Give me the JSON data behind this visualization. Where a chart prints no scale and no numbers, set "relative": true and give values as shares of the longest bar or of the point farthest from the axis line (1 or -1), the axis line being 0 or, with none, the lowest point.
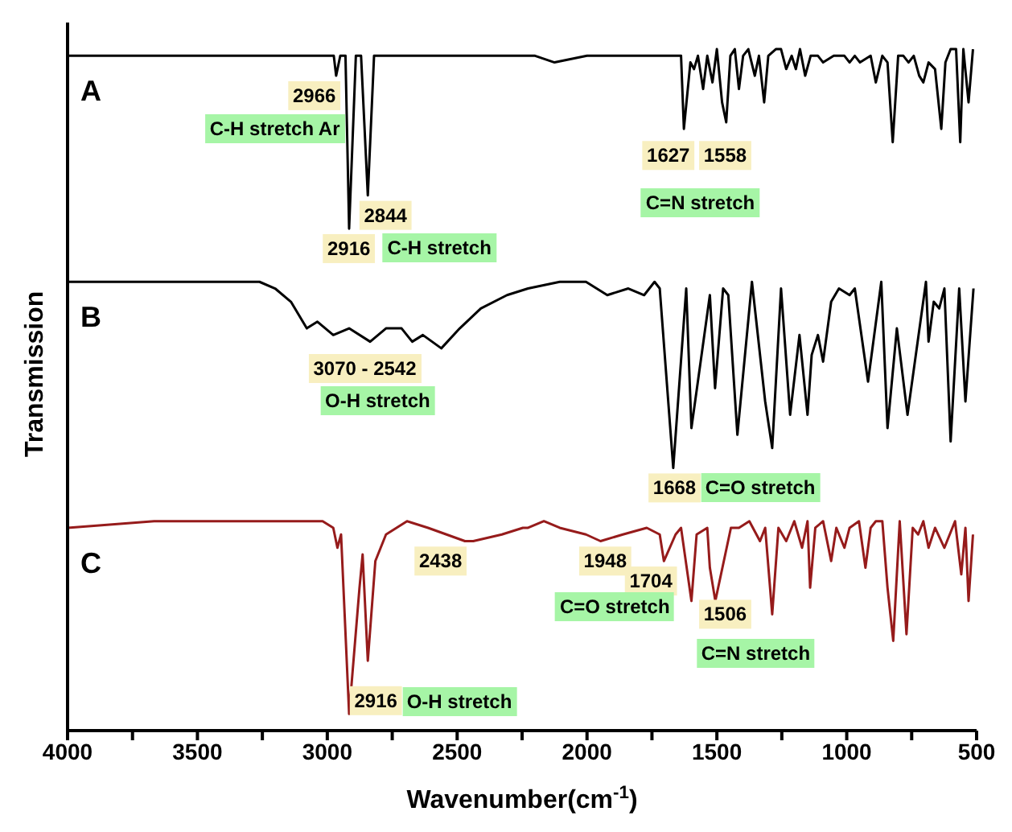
{
  "chart_data": {
    "type": "line",
    "relative": true,
    "xlabel": "Wavenumber(cm$^{-1}$)",
    "ylabel": "Transmission",
    "xlim": [
      4000,
      500
    ],
    "xticks": [
      4000,
      {
        "value": 3750,
        "label": null
      },
      3500,
      {
        "value": 3250,
        "label": null
      },
      3000,
      {
        "value": 2750,
        "label": null
      },
      2500,
      {
        "value": 2250,
        "label": null
      },
      2000,
      {
        "value": 1750,
        "label": null
      },
      1500,
      {
        "value": 1250,
        "label": null
      },
      1000,
      {
        "value": 750,
        "label": null
      },
      500
    ],
    "marker": "none",
    "line_style": "solid",
    "series": [
      {
        "name": "A",
        "color": "#000000",
        "x": [
          4000,
          3800,
          3500,
          3200,
          3000,
          2975,
          2966,
          2950,
          2930,
          2916,
          2890,
          2870,
          2844,
          2820,
          2500,
          2200,
          2125,
          2000,
          1800,
          1650,
          1638,
          1627,
          1602,
          1588,
          1573,
          1553,
          1537,
          1517,
          1500,
          1480,
          1464,
          1448,
          1431,
          1415,
          1399,
          1379,
          1354,
          1338,
          1318,
          1302,
          1273,
          1253,
          1233,
          1212,
          1196,
          1180,
          1160,
          1139,
          1111,
          1091,
          1050,
          1009,
          989,
          969,
          949,
          908,
          888,
          863,
          843,
          823,
          802,
          782,
          762,
          742,
          721,
          705,
          685,
          660,
          636,
          620,
          600,
          579,
          563,
          551,
          531,
          514
        ],
        "values": [
          0.99,
          0.99,
          0.99,
          0.99,
          0.99,
          0.99,
          0.96,
          0.99,
          0.99,
          0.73,
          0.99,
          0.99,
          0.78,
          0.99,
          0.99,
          0.99,
          0.98,
          0.99,
          0.99,
          0.99,
          0.99,
          0.88,
          0.98,
          0.97,
          0.99,
          0.94,
          0.99,
          0.95,
          1.0,
          0.92,
          0.89,
          0.99,
          1.0,
          0.94,
          0.99,
          1.0,
          0.96,
          0.99,
          0.92,
          0.99,
          1.0,
          1.0,
          0.97,
          0.99,
          0.97,
          1.0,
          0.96,
          0.99,
          0.99,
          0.98,
          0.99,
          0.99,
          0.98,
          0.99,
          0.98,
          0.99,
          0.95,
          0.99,
          0.98,
          0.86,
          0.99,
          0.99,
          0.98,
          0.99,
          0.96,
          0.95,
          0.98,
          0.97,
          0.88,
          0.98,
          1.0,
          1.0,
          0.86,
          1.0,
          0.92,
          1.0
        ]
      },
      {
        "name": "B",
        "color": "#000000",
        "x": [
          4000,
          3261,
          3201,
          3140,
          3079,
          3038,
          2977,
          2916,
          2835,
          2774,
          2714,
          2673,
          2632,
          2561,
          2490,
          2409,
          2308,
          2227,
          2105,
          2004,
          1922,
          1841,
          1780,
          1740,
          1720,
          1668,
          1618,
          1598,
          1527,
          1507,
          1476,
          1456,
          1421,
          1365,
          1314,
          1287,
          1253,
          1218,
          1182,
          1151,
          1135,
          1111,
          1091,
          1060,
          1030,
          989,
          969,
          918,
          867,
          843,
          807,
          766,
          695,
          685,
          665,
          644,
          624,
          600,
          567,
          543,
          512
        ],
        "values": [
          0.65,
          0.65,
          0.64,
          0.62,
          0.58,
          0.59,
          0.57,
          0.58,
          0.56,
          0.58,
          0.58,
          0.56,
          0.57,
          0.55,
          0.58,
          0.61,
          0.63,
          0.64,
          0.65,
          0.65,
          0.63,
          0.64,
          0.63,
          0.65,
          0.64,
          0.37,
          0.64,
          0.43,
          0.63,
          0.49,
          0.64,
          0.63,
          0.42,
          0.65,
          0.47,
          0.4,
          0.64,
          0.45,
          0.57,
          0.45,
          0.54,
          0.57,
          0.53,
          0.62,
          0.64,
          0.63,
          0.64,
          0.5,
          0.65,
          0.43,
          0.58,
          0.45,
          0.65,
          0.56,
          0.62,
          0.61,
          0.64,
          0.41,
          0.64,
          0.47,
          0.64
        ]
      },
      {
        "name": "C",
        "color": "#961b1b",
        "x": [
          4000,
          3667,
          3261,
          3018,
          2977,
          2961,
          2947,
          2916,
          2876,
          2864,
          2844,
          2815,
          2774,
          2693,
          2612,
          2470,
          2438,
          2328,
          2247,
          2227,
          2166,
          2105,
          2004,
          1948,
          1862,
          1770,
          1720,
          1704,
          1659,
          1638,
          1598,
          1578,
          1537,
          1527,
          1506,
          1446,
          1415,
          1375,
          1334,
          1314,
          1287,
          1263,
          1233,
          1202,
          1172,
          1151,
          1141,
          1121,
          1091,
          1060,
          1040,
          1009,
          989,
          953,
          928,
          908,
          888,
          863,
          843,
          821,
          796,
          770,
          746,
          725,
          705,
          685,
          660,
          624,
          583,
          559,
          543,
          531,
          514
        ],
        "values": [
          0.28,
          0.29,
          0.29,
          0.29,
          0.28,
          0.25,
          0.27,
          0.0,
          0.19,
          0.24,
          0.08,
          0.23,
          0.27,
          0.29,
          0.28,
          0.26,
          0.26,
          0.27,
          0.28,
          0.28,
          0.29,
          0.28,
          0.27,
          0.26,
          0.27,
          0.28,
          0.27,
          0.23,
          0.27,
          0.28,
          0.17,
          0.27,
          0.28,
          0.22,
          0.17,
          0.28,
          0.28,
          0.29,
          0.26,
          0.28,
          0.15,
          0.28,
          0.26,
          0.29,
          0.25,
          0.29,
          0.19,
          0.28,
          0.29,
          0.23,
          0.28,
          0.25,
          0.28,
          0.29,
          0.22,
          0.28,
          0.29,
          0.29,
          0.19,
          0.11,
          0.29,
          0.12,
          0.28,
          0.27,
          0.29,
          0.25,
          0.28,
          0.25,
          0.29,
          0.21,
          0.28,
          0.17,
          0.27
        ]
      }
    ],
    "annotations": [
      {
        "text": "2966",
        "x": 3050,
        "y": 0.93
      },
      "C-H stretch Ar",
      {
        "text": "2844",
        "x": 2776,
        "y": 0.75
      },
      {
        "text": "2916",
        "x": 2917,
        "y": 0.7
      },
      "C-H stretch",
      {
        "text": "1627",
        "x": 1687,
        "y": 0.84
      },
      {
        "text": "1558",
        "x": 1468,
        "y": 0.84
      },
      "C=N stretch",
      "3070 - 2542",
      "O-H stretch",
      {
        "text": "1668",
        "x": 1663,
        "y": 0.34
      },
      "C=O stretch",
      {
        "text": "2438",
        "x": 2564,
        "y": 0.23
      },
      {
        "text": "1948",
        "x": 1930,
        "y": 0.23
      },
      {
        "text": "1704",
        "x": 1754,
        "y": 0.2
      },
      "C=O stretch",
      {
        "text": "1506",
        "x": 1468,
        "y": 0.15
      },
      "C=N stretch",
      {
        "text": "2916",
        "x": 2813,
        "y": 0.02
      },
      "O-H stretch"
    ]
  }
}
